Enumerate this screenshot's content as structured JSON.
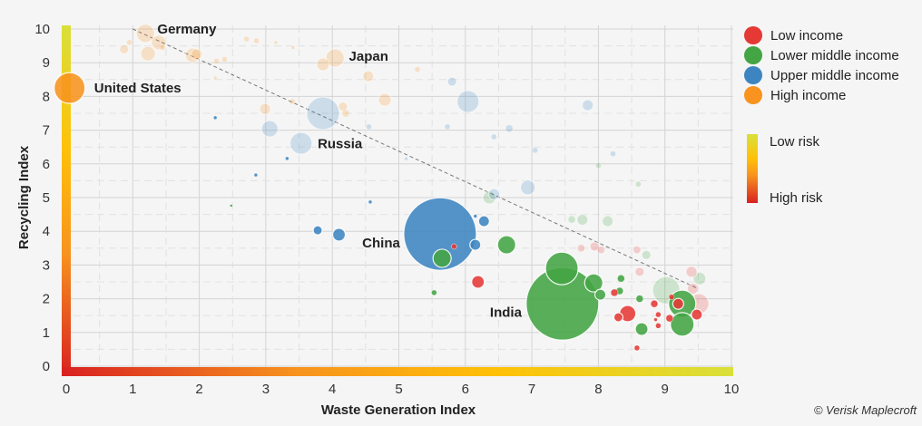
{
  "chart_data": {
    "type": "scatter",
    "xlabel": "Waste Generation Index",
    "ylabel": "Recycling Index",
    "xlim": [
      0,
      10
    ],
    "ylim": [
      0,
      10
    ],
    "xticks": [
      "0",
      "1",
      "2",
      "3",
      "4",
      "5",
      "6",
      "7",
      "8",
      "9",
      "10"
    ],
    "yticks": [
      "0",
      "1",
      "2",
      "3",
      "4",
      "5",
      "6",
      "7",
      "8",
      "9",
      "10"
    ],
    "grid": true,
    "legend_placement": "right",
    "trendline": {
      "style": "dashed",
      "from": [
        1.0,
        10.0
      ],
      "to": [
        9.5,
        2.3
      ]
    },
    "categories": [
      {
        "key": "low",
        "name": "Low income",
        "color": "#e53935"
      },
      {
        "key": "lower_middle",
        "name": "Lower middle income",
        "color": "#43a543"
      },
      {
        "key": "upper_middle",
        "name": "Upper middle income",
        "color": "#3d85c0"
      },
      {
        "key": "high",
        "name": "High income",
        "color": "#f7931e"
      }
    ],
    "risk_scale": {
      "low_label": "Low risk",
      "high_label": "High risk",
      "low_color": "#d9e03a",
      "high_color": "#d92121"
    },
    "labels": [
      {
        "text": "Germany",
        "x": 1.37,
        "y": 10.0
      },
      {
        "text": "Japan",
        "x": 4.25,
        "y": 9.2
      },
      {
        "text": "United States",
        "x": 0.42,
        "y": 8.25
      },
      {
        "text": "Russia",
        "x": 3.78,
        "y": 6.6
      },
      {
        "text": "China",
        "x": 4.45,
        "y": 3.65
      },
      {
        "text": "India",
        "x": 6.37,
        "y": 1.6
      }
    ],
    "points": [
      {
        "x": 1.19,
        "y": 9.87,
        "size": 10,
        "cat": "high",
        "faded": true
      },
      {
        "x": 1.39,
        "y": 9.6,
        "size": 8,
        "cat": "high",
        "faded": true
      },
      {
        "x": 1.23,
        "y": 9.27,
        "size": 8,
        "cat": "high",
        "faded": true
      },
      {
        "x": 0.87,
        "y": 9.4,
        "size": 5,
        "cat": "high",
        "faded": true
      },
      {
        "x": 0.95,
        "y": 9.6,
        "size": 3,
        "cat": "high",
        "faded": true
      },
      {
        "x": 1.9,
        "y": 9.22,
        "size": 8,
        "cat": "high",
        "faded": true
      },
      {
        "x": 1.96,
        "y": 9.25,
        "size": 6,
        "cat": "high",
        "faded": true
      },
      {
        "x": 1.45,
        "y": 9.45,
        "size": 3,
        "cat": "high",
        "faded": true
      },
      {
        "x": 2.71,
        "y": 9.7,
        "size": 3,
        "cat": "high",
        "faded": true
      },
      {
        "x": 2.86,
        "y": 9.65,
        "size": 3,
        "cat": "high",
        "faded": true
      },
      {
        "x": 3.15,
        "y": 9.6,
        "size": 2,
        "cat": "high",
        "faded": true
      },
      {
        "x": 3.41,
        "y": 9.45,
        "size": 2,
        "cat": "high",
        "faded": true
      },
      {
        "x": 2.26,
        "y": 9.05,
        "size": 3,
        "cat": "high",
        "faded": true
      },
      {
        "x": 2.38,
        "y": 9.1,
        "size": 3,
        "cat": "high",
        "faded": true
      },
      {
        "x": 2.24,
        "y": 8.55,
        "size": 2,
        "cat": "high",
        "faded": true
      },
      {
        "x": 4.04,
        "y": 9.14,
        "size": 10,
        "cat": "high",
        "faded": true
      },
      {
        "x": 3.86,
        "y": 8.95,
        "size": 7,
        "cat": "high",
        "faded": true
      },
      {
        "x": 4.54,
        "y": 8.6,
        "size": 6,
        "cat": "high",
        "faded": true
      },
      {
        "x": 5.28,
        "y": 8.8,
        "size": 3,
        "cat": "high",
        "faded": true
      },
      {
        "x": 4.79,
        "y": 7.9,
        "size": 7,
        "cat": "high",
        "faded": true
      },
      {
        "x": 4.16,
        "y": 7.7,
        "size": 5,
        "cat": "high",
        "faded": true
      },
      {
        "x": 4.2,
        "y": 7.5,
        "size": 4,
        "cat": "high",
        "faded": true
      },
      {
        "x": 2.99,
        "y": 7.63,
        "size": 6,
        "cat": "high",
        "faded": true
      },
      {
        "x": 3.4,
        "y": 7.85,
        "size": 3,
        "cat": "high",
        "faded": true
      },
      {
        "x": 0.05,
        "y": 8.25,
        "size": 17,
        "cat": "high",
        "faded": false
      },
      {
        "x": 3.86,
        "y": 7.5,
        "size": 18,
        "cat": "upper_middle",
        "faded": true
      },
      {
        "x": 3.53,
        "y": 6.61,
        "size": 12,
        "cat": "upper_middle",
        "faded": true
      },
      {
        "x": 3.06,
        "y": 7.04,
        "size": 9,
        "cat": "upper_middle",
        "faded": true
      },
      {
        "x": 6.04,
        "y": 7.85,
        "size": 12,
        "cat": "upper_middle",
        "faded": true
      },
      {
        "x": 5.8,
        "y": 8.44,
        "size": 5,
        "cat": "upper_middle",
        "faded": true
      },
      {
        "x": 7.84,
        "y": 7.74,
        "size": 6,
        "cat": "upper_middle",
        "faded": true
      },
      {
        "x": 6.66,
        "y": 7.05,
        "size": 4,
        "cat": "upper_middle",
        "faded": true
      },
      {
        "x": 6.94,
        "y": 5.3,
        "size": 8,
        "cat": "upper_middle",
        "faded": true
      },
      {
        "x": 6.43,
        "y": 5.1,
        "size": 6,
        "cat": "upper_middle",
        "faded": true
      },
      {
        "x": 6.43,
        "y": 6.8,
        "size": 3,
        "cat": "upper_middle",
        "faded": true
      },
      {
        "x": 7.05,
        "y": 6.4,
        "size": 3,
        "cat": "upper_middle",
        "faded": true
      },
      {
        "x": 8.22,
        "y": 6.3,
        "size": 3,
        "cat": "upper_middle",
        "faded": true
      },
      {
        "x": 5.73,
        "y": 7.1,
        "size": 3,
        "cat": "upper_middle",
        "faded": true
      },
      {
        "x": 5.11,
        "y": 6.15,
        "size": 2,
        "cat": "upper_middle",
        "faded": true
      },
      {
        "x": 4.55,
        "y": 7.1,
        "size": 3,
        "cat": "upper_middle",
        "faded": true
      },
      {
        "x": 5.62,
        "y": 3.92,
        "size": 40,
        "cat": "upper_middle",
        "faded": false
      },
      {
        "x": 6.28,
        "y": 4.3,
        "size": 6,
        "cat": "upper_middle",
        "faded": false
      },
      {
        "x": 6.15,
        "y": 3.6,
        "size": 6,
        "cat": "upper_middle",
        "faded": false
      },
      {
        "x": 6.15,
        "y": 4.45,
        "size": 2,
        "cat": "upper_middle",
        "faded": false
      },
      {
        "x": 3.78,
        "y": 4.03,
        "size": 5,
        "cat": "upper_middle",
        "faded": false
      },
      {
        "x": 4.1,
        "y": 3.9,
        "size": 7,
        "cat": "upper_middle",
        "faded": false
      },
      {
        "x": 2.24,
        "y": 7.37,
        "size": 2,
        "cat": "upper_middle",
        "faded": false
      },
      {
        "x": 2.85,
        "y": 5.67,
        "size": 2,
        "cat": "upper_middle",
        "faded": false
      },
      {
        "x": 3.32,
        "y": 6.16,
        "size": 2,
        "cat": "upper_middle",
        "faded": false
      },
      {
        "x": 4.57,
        "y": 4.87,
        "size": 2,
        "cat": "upper_middle",
        "faded": false
      },
      {
        "x": 7.46,
        "y": 1.85,
        "size": 40,
        "cat": "lower_middle",
        "faded": false
      },
      {
        "x": 7.45,
        "y": 2.9,
        "size": 18,
        "cat": "lower_middle",
        "faded": false
      },
      {
        "x": 7.93,
        "y": 2.47,
        "size": 10,
        "cat": "lower_middle",
        "faded": false
      },
      {
        "x": 8.03,
        "y": 2.12,
        "size": 6,
        "cat": "lower_middle",
        "faded": false
      },
      {
        "x": 6.62,
        "y": 3.6,
        "size": 10,
        "cat": "lower_middle",
        "faded": false
      },
      {
        "x": 5.65,
        "y": 3.2,
        "size": 10,
        "cat": "lower_middle",
        "faded": false
      },
      {
        "x": 5.53,
        "y": 2.18,
        "size": 3,
        "cat": "lower_middle",
        "faded": false
      },
      {
        "x": 2.48,
        "y": 4.76,
        "size": 1.5,
        "cat": "lower_middle",
        "faded": false
      },
      {
        "x": 8.34,
        "y": 2.6,
        "size": 4,
        "cat": "lower_middle",
        "faded": false
      },
      {
        "x": 8.32,
        "y": 2.23,
        "size": 4,
        "cat": "lower_middle",
        "faded": false
      },
      {
        "x": 8.62,
        "y": 2.0,
        "size": 4,
        "cat": "lower_middle",
        "faded": false
      },
      {
        "x": 8.65,
        "y": 1.1,
        "size": 7,
        "cat": "lower_middle",
        "faded": false
      },
      {
        "x": 9.26,
        "y": 1.85,
        "size": 15,
        "cat": "lower_middle",
        "faded": false
      },
      {
        "x": 9.26,
        "y": 1.24,
        "size": 13,
        "cat": "lower_middle",
        "faded": false
      },
      {
        "x": 6.36,
        "y": 5.0,
        "size": 7,
        "cat": "lower_middle",
        "faded": true
      },
      {
        "x": 7.76,
        "y": 4.34,
        "size": 6,
        "cat": "lower_middle",
        "faded": true
      },
      {
        "x": 8.14,
        "y": 4.3,
        "size": 6,
        "cat": "lower_middle",
        "faded": true
      },
      {
        "x": 7.6,
        "y": 4.35,
        "size": 4,
        "cat": "lower_middle",
        "faded": true
      },
      {
        "x": 8.72,
        "y": 3.3,
        "size": 5,
        "cat": "lower_middle",
        "faded": true
      },
      {
        "x": 8.0,
        "y": 5.95,
        "size": 3,
        "cat": "lower_middle",
        "faded": true
      },
      {
        "x": 8.6,
        "y": 5.4,
        "size": 3,
        "cat": "lower_middle",
        "faded": true
      },
      {
        "x": 9.02,
        "y": 2.25,
        "size": 15,
        "cat": "lower_middle",
        "faded": true
      },
      {
        "x": 9.52,
        "y": 2.6,
        "size": 7,
        "cat": "lower_middle",
        "faded": true
      },
      {
        "x": 6.19,
        "y": 2.5,
        "size": 7,
        "cat": "low",
        "faded": false
      },
      {
        "x": 5.83,
        "y": 3.55,
        "size": 3,
        "cat": "low",
        "faded": false
      },
      {
        "x": 8.24,
        "y": 2.18,
        "size": 4,
        "cat": "low",
        "faded": false
      },
      {
        "x": 8.44,
        "y": 1.56,
        "size": 9,
        "cat": "low",
        "faded": false
      },
      {
        "x": 8.3,
        "y": 1.45,
        "size": 5,
        "cat": "low",
        "faded": false
      },
      {
        "x": 8.58,
        "y": 0.54,
        "size": 3,
        "cat": "low",
        "faded": false
      },
      {
        "x": 8.84,
        "y": 1.85,
        "size": 4,
        "cat": "low",
        "faded": false
      },
      {
        "x": 8.9,
        "y": 1.53,
        "size": 3,
        "cat": "low",
        "faded": false
      },
      {
        "x": 8.9,
        "y": 1.2,
        "size": 3,
        "cat": "low",
        "faded": false
      },
      {
        "x": 8.86,
        "y": 1.38,
        "size": 2,
        "cat": "low",
        "faded": false
      },
      {
        "x": 9.07,
        "y": 1.42,
        "size": 4,
        "cat": "low",
        "faded": false
      },
      {
        "x": 9.2,
        "y": 1.85,
        "size": 6,
        "cat": "low",
        "faded": false
      },
      {
        "x": 9.48,
        "y": 1.53,
        "size": 6,
        "cat": "low",
        "faded": false
      },
      {
        "x": 9.1,
        "y": 2.05,
        "size": 3,
        "cat": "low",
        "faded": false
      },
      {
        "x": 7.74,
        "y": 3.5,
        "size": 4,
        "cat": "low",
        "faded": true
      },
      {
        "x": 7.94,
        "y": 3.55,
        "size": 5,
        "cat": "low",
        "faded": true
      },
      {
        "x": 8.04,
        "y": 3.45,
        "size": 4,
        "cat": "low",
        "faded": true
      },
      {
        "x": 8.58,
        "y": 3.45,
        "size": 4,
        "cat": "low",
        "faded": true
      },
      {
        "x": 8.62,
        "y": 2.8,
        "size": 5,
        "cat": "low",
        "faded": true
      },
      {
        "x": 9.4,
        "y": 2.8,
        "size": 6,
        "cat": "low",
        "faded": true
      },
      {
        "x": 9.51,
        "y": 1.85,
        "size": 11,
        "cat": "low",
        "faded": true
      },
      {
        "x": 9.42,
        "y": 2.3,
        "size": 6,
        "cat": "low",
        "faded": true
      }
    ]
  },
  "credit": "© Verisk Maplecroft"
}
